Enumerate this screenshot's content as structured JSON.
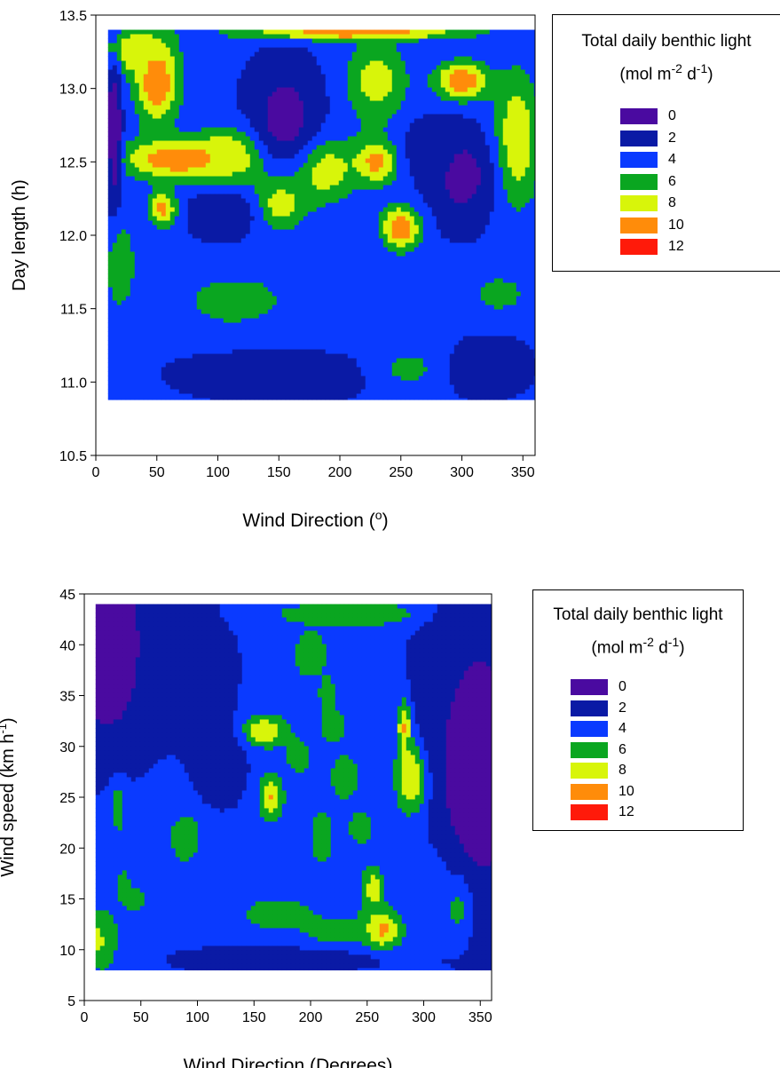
{
  "chart_data": [
    {
      "type": "heatmap",
      "title": "",
      "xlabel": "Wind Direction (",
      "xlabel_sup": "o",
      "xlabel_end": ")",
      "ylabel": "Day length (h)",
      "xlim": [
        0,
        360
      ],
      "ylim": [
        10.5,
        13.5
      ],
      "x_ticks": [
        0,
        50,
        100,
        150,
        200,
        250,
        300,
        350
      ],
      "y_ticks": [
        "10.5",
        "11.0",
        "11.5",
        "12.0",
        "12.5",
        "13.0",
        "13.5"
      ],
      "data_extent": {
        "x": [
          10,
          360
        ],
        "y": [
          10.88,
          13.4
        ]
      },
      "z_levels": [
        0,
        2,
        4,
        6,
        8,
        10,
        12
      ],
      "colors": [
        "#4a0aa0",
        "#0a1aa5",
        "#0a3aff",
        "#0aa620",
        "#d8f50a",
        "#ff8c0a",
        "#ff1a0a"
      ],
      "legend": {
        "title_line1": "Total daily benthic light",
        "title_line2_a": "(mol m",
        "title_line2_sup1": "-2",
        "title_line2_b": " d",
        "title_line2_sup2": "-1",
        "title_line2_c": ")",
        "labels": [
          "0",
          "2",
          "4",
          "6",
          "8",
          "10",
          "12"
        ]
      },
      "blobs": [
        {
          "x": 50,
          "y": 13.05,
          "z": 12,
          "rx": 18,
          "ry": 0.28
        },
        {
          "x": 70,
          "y": 12.52,
          "z": 12,
          "rx": 48,
          "ry": 0.14
        },
        {
          "x": 115,
          "y": 12.55,
          "z": 10,
          "rx": 30,
          "ry": 0.18
        },
        {
          "x": 30,
          "y": 13.25,
          "z": 10,
          "rx": 25,
          "ry": 0.15
        },
        {
          "x": 210,
          "y": 13.38,
          "z": 12,
          "rx": 90,
          "ry": 0.05
        },
        {
          "x": 55,
          "y": 12.18,
          "z": 11,
          "rx": 12,
          "ry": 0.12
        },
        {
          "x": 20,
          "y": 11.8,
          "z": 8,
          "rx": 12,
          "ry": 0.3
        },
        {
          "x": 115,
          "y": 11.55,
          "z": 8,
          "rx": 38,
          "ry": 0.16
        },
        {
          "x": 150,
          "y": 12.22,
          "z": 10,
          "rx": 22,
          "ry": 0.18
        },
        {
          "x": 185,
          "y": 12.45,
          "z": 10,
          "rx": 28,
          "ry": 0.22
        },
        {
          "x": 230,
          "y": 12.5,
          "z": 11,
          "rx": 18,
          "ry": 0.15
        },
        {
          "x": 250,
          "y": 12.05,
          "z": 12,
          "rx": 16,
          "ry": 0.15
        },
        {
          "x": 300,
          "y": 13.05,
          "z": 12,
          "rx": 22,
          "ry": 0.13
        },
        {
          "x": 345,
          "y": 12.65,
          "z": 10,
          "rx": 18,
          "ry": 0.45
        },
        {
          "x": 255,
          "y": 11.1,
          "z": 8,
          "rx": 28,
          "ry": 0.14
        },
        {
          "x": 330,
          "y": 11.6,
          "z": 7,
          "rx": 25,
          "ry": 0.14
        },
        {
          "x": 230,
          "y": 13.05,
          "z": 9,
          "rx": 25,
          "ry": 0.3
        },
        {
          "x": 150,
          "y": 11.45,
          "z": 6,
          "rx": 60,
          "ry": 0.2
        },
        {
          "x": 250,
          "y": 11.45,
          "z": 5,
          "rx": 40,
          "ry": 0.25
        },
        {
          "x": 155,
          "y": 12.8,
          "z": 1,
          "rx": 28,
          "ry": 0.35
        },
        {
          "x": 105,
          "y": 12.15,
          "z": 2,
          "rx": 28,
          "ry": 0.15
        },
        {
          "x": 300,
          "y": 12.4,
          "z": 1,
          "rx": 25,
          "ry": 0.3
        },
        {
          "x": 15,
          "y": 12.7,
          "z": 0,
          "rx": 6,
          "ry": 0.5
        },
        {
          "x": 150,
          "y": 11.05,
          "z": 3,
          "rx": 80,
          "ry": 0.18
        },
        {
          "x": 320,
          "y": 11.1,
          "z": 3,
          "rx": 35,
          "ry": 0.2
        },
        {
          "x": 200,
          "y": 11.9,
          "z": 4,
          "rx": 25,
          "ry": 0.15
        },
        {
          "x": 270,
          "y": 12.6,
          "z": 3,
          "rx": 20,
          "ry": 0.2
        }
      ]
    },
    {
      "type": "heatmap",
      "title": "",
      "xlabel": "Wind Direction (Degrees)",
      "ylabel": "Wind speed (km h",
      "ylabel_sup": "-1",
      "ylabel_end": ")",
      "xlim": [
        0,
        360
      ],
      "ylim": [
        5,
        45
      ],
      "x_ticks": [
        0,
        50,
        100,
        150,
        200,
        250,
        300,
        350
      ],
      "y_ticks": [
        "5",
        "10",
        "15",
        "20",
        "25",
        "30",
        "35",
        "40",
        "45"
      ],
      "data_extent": {
        "x": [
          10,
          360
        ],
        "y": [
          8,
          44
        ]
      },
      "z_levels": [
        0,
        2,
        4,
        6,
        8,
        10,
        12
      ],
      "colors": [
        "#4a0aa0",
        "#0a1aa5",
        "#0a3aff",
        "#0aa620",
        "#d8f50a",
        "#ff8c0a",
        "#ff1a0a"
      ],
      "legend": {
        "title_line1": "Total daily benthic light",
        "title_line2_a": "(mol m",
        "title_line2_sup1": "-2",
        "title_line2_b": " d",
        "title_line2_sup2": "-1",
        "title_line2_c": ")",
        "labels": [
          "0",
          "2",
          "4",
          "6",
          "8",
          "10",
          "12"
        ]
      },
      "blobs": [
        {
          "x": 290,
          "y": 27,
          "z": 12,
          "rx": 14,
          "ry": 3.5
        },
        {
          "x": 283,
          "y": 32,
          "z": 12,
          "rx": 6,
          "ry": 2.5
        },
        {
          "x": 15,
          "y": 11,
          "z": 12,
          "rx": 12,
          "ry": 2.5
        },
        {
          "x": 165,
          "y": 25,
          "z": 12,
          "rx": 10,
          "ry": 2
        },
        {
          "x": 160,
          "y": 31.5,
          "z": 11,
          "rx": 20,
          "ry": 1.5
        },
        {
          "x": 262,
          "y": 12,
          "z": 12,
          "rx": 18,
          "ry": 2
        },
        {
          "x": 330,
          "y": 15,
          "z": 11,
          "rx": 12,
          "ry": 3
        },
        {
          "x": 90,
          "y": 21,
          "z": 10,
          "rx": 12,
          "ry": 2
        },
        {
          "x": 200,
          "y": 39,
          "z": 10,
          "rx": 12,
          "ry": 2
        },
        {
          "x": 230,
          "y": 27,
          "z": 10,
          "rx": 10,
          "ry": 2
        },
        {
          "x": 210,
          "y": 21,
          "z": 11,
          "rx": 8,
          "ry": 2
        },
        {
          "x": 255,
          "y": 16,
          "z": 11,
          "rx": 9,
          "ry": 2
        },
        {
          "x": 190,
          "y": 29,
          "z": 9,
          "rx": 10,
          "ry": 1.5
        },
        {
          "x": 220,
          "y": 32,
          "z": 9,
          "rx": 10,
          "ry": 1.5
        },
        {
          "x": 245,
          "y": 22,
          "z": 9,
          "rx": 10,
          "ry": 1.5
        },
        {
          "x": 215,
          "y": 35,
          "z": 11,
          "rx": 6,
          "ry": 1.5
        },
        {
          "x": 35,
          "y": 16,
          "z": 11,
          "rx": 5,
          "ry": 1.5
        },
        {
          "x": 45,
          "y": 15,
          "z": 10,
          "rx": 7,
          "ry": 1
        },
        {
          "x": 30,
          "y": 24,
          "z": 9,
          "rx": 6,
          "ry": 2.5
        },
        {
          "x": 235,
          "y": 43,
          "z": 8,
          "rx": 70,
          "ry": 1.3
        },
        {
          "x": 170,
          "y": 13.5,
          "z": 7,
          "rx": 40,
          "ry": 2
        },
        {
          "x": 220,
          "y": 11.5,
          "z": 7,
          "rx": 30,
          "ry": 2
        },
        {
          "x": 215,
          "y": 26,
          "z": 6,
          "rx": 45,
          "ry": 16
        },
        {
          "x": 310,
          "y": 17,
          "z": 6,
          "rx": 30,
          "ry": 4
        },
        {
          "x": 105,
          "y": 19,
          "z": 6,
          "rx": 35,
          "ry": 5
        },
        {
          "x": 30,
          "y": 14,
          "z": 6,
          "rx": 25,
          "ry": 9
        },
        {
          "x": 200,
          "y": 42,
          "z": 6,
          "rx": 40,
          "ry": 2
        },
        {
          "x": 20,
          "y": 40,
          "z": 0,
          "rx": 35,
          "ry": 10
        },
        {
          "x": 350,
          "y": 28,
          "z": 0,
          "rx": 40,
          "ry": 13
        },
        {
          "x": 90,
          "y": 38,
          "z": 2,
          "rx": 35,
          "ry": 6
        },
        {
          "x": 320,
          "y": 36,
          "z": 2,
          "rx": 25,
          "ry": 7
        },
        {
          "x": 120,
          "y": 28,
          "z": 2,
          "rx": 20,
          "ry": 4
        },
        {
          "x": 180,
          "y": 9,
          "z": 2,
          "rx": 80,
          "ry": 1.2
        }
      ]
    }
  ]
}
